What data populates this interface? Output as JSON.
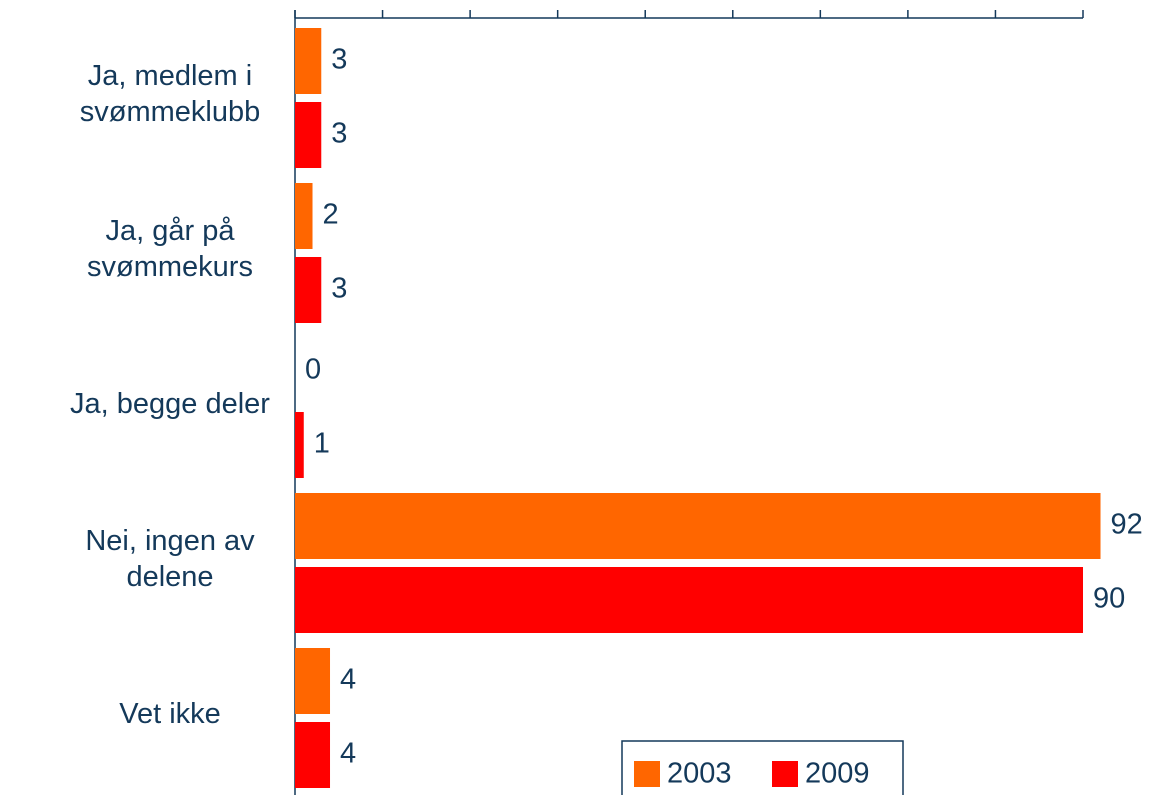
{
  "chart_data": {
    "type": "bar",
    "orientation": "horizontal",
    "categories": [
      "Ja, medlem i\nsvømmeklubb",
      "Ja, går på\nsvømmekurs",
      "Ja, begge deler",
      "Nei, ingen av\ndelene",
      "Vet ikke"
    ],
    "series": [
      {
        "name": "2003",
        "color": "#ff6600",
        "values": [
          3,
          2,
          0,
          92,
          4
        ]
      },
      {
        "name": "2009",
        "color": "#ff0000",
        "values": [
          3,
          3,
          1,
          90,
          4
        ]
      }
    ],
    "xlim": [
      0,
      90
    ],
    "xticks": [
      0,
      10,
      20,
      30,
      40,
      50,
      60,
      70,
      80,
      90
    ],
    "legend": "bottom"
  }
}
